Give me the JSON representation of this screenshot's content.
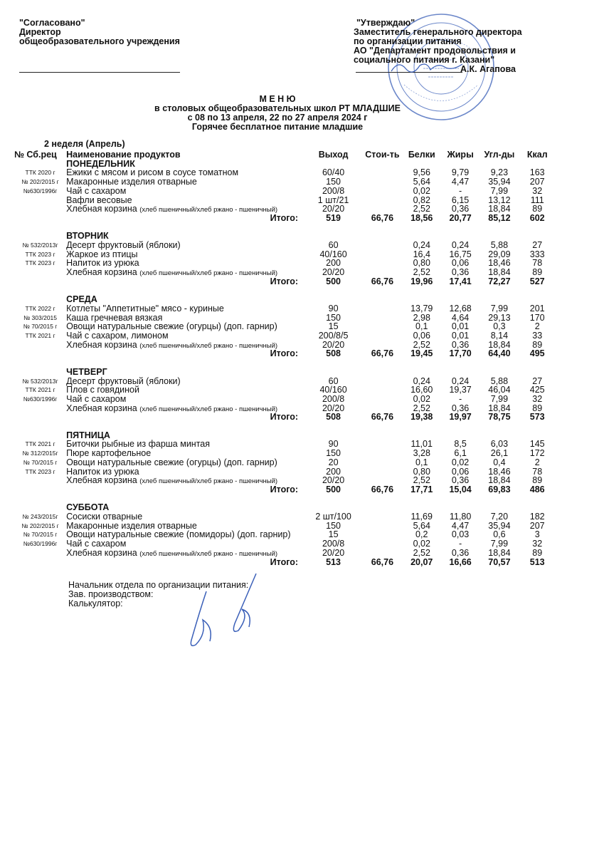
{
  "left_header": {
    "agreed": "\"Согласовано\"",
    "position": "Директор",
    "org": "общеобразовательного учреждения"
  },
  "right_header": {
    "approved": "\"Утверждаю\"",
    "position": "Заместитель генерального директора",
    "dept": "по организации питания",
    "org_line1": "АО  \"Департамент  продовольствия  и",
    "org_line2": "социального питания г. Казани\"",
    "signer": "А.К. Агапова"
  },
  "title": {
    "main": "М Е Н Ю",
    "line1": "в столовых общеобразовательных школ РТ МЛАДШИЕ",
    "line2": "с 08 по 13 апреля, 22 по 27 апреля 2024 г",
    "line3": "Горячее бесплатное питание младшие"
  },
  "week_label": "2 неделя (Апрель)",
  "columns": [
    "№ Сб.рец",
    "Наименование продуктов",
    "Выход",
    "Стои-ть",
    "Белки",
    "Жиры",
    "Угл-ды",
    "Ккал"
  ],
  "total_label": "Итого:",
  "days": [
    {
      "name": "ПОНЕДЕЛЬНИК",
      "items": [
        {
          "code": "ТТК 2020 г",
          "name": "Ежики с мясом и рисом в соусе томатном",
          "out": "60/40",
          "b": "9,56",
          "f": "9,79",
          "c": "9,23",
          "k": "163"
        },
        {
          "code": "№ 202/2015 г",
          "name": "Макаронные изделия отварные",
          "out": "150",
          "b": "5,64",
          "f": "4,47",
          "c": "35,94",
          "k": "207"
        },
        {
          "code": "№630/1996г",
          "name": "Чай с сахаром",
          "out": "200/8",
          "b": "0,02",
          "f": "-",
          "c": "7,99",
          "k": "32"
        },
        {
          "code": "",
          "name": "Вафли весовые",
          "out": "1 шт/21",
          "b": "0,82",
          "f": "6,15",
          "c": "13,12",
          "k": "111"
        },
        {
          "code": "",
          "name": "Хлебная корзина",
          "note": "(хлеб пшеничный/хлеб ржано - пшеничный)",
          "out": "20/20",
          "b": "2,52",
          "f": "0,36",
          "c": "18,84",
          "k": "89"
        }
      ],
      "total": {
        "out": "519",
        "cost": "66,76",
        "b": "18,56",
        "f": "20,77",
        "c": "85,12",
        "k": "602"
      }
    },
    {
      "name": "ВТОРНИК",
      "items": [
        {
          "code": "№ 532/2013г",
          "name": "Десерт фруктовый (яблоки)",
          "out": "60",
          "b": "0,24",
          "f": "0,24",
          "c": "5,88",
          "k": "27"
        },
        {
          "code": "ТТК 2023 г",
          "name": "Жаркое из птицы",
          "out": "40/160",
          "b": "16,4",
          "f": "16,75",
          "c": "29,09",
          "k": "333"
        },
        {
          "code": "ТТК 2023 г",
          "name": "Напиток из урюка",
          "out": "200",
          "b": "0,80",
          "f": "0,06",
          "c": "18,46",
          "k": "78"
        },
        {
          "code": "",
          "name": "Хлебная корзина",
          "note": "(хлеб пшеничный/хлеб ржано - пшеничный)",
          "out": "20/20",
          "b": "2,52",
          "f": "0,36",
          "c": "18,84",
          "k": "89"
        }
      ],
      "total": {
        "out": "500",
        "cost": "66,76",
        "b": "19,96",
        "f": "17,41",
        "c": "72,27",
        "k": "527"
      }
    },
    {
      "name": "СРЕДА",
      "items": [
        {
          "code": "ТТК 2022 г",
          "name": "Котлеты \"Аппетитные\" мясо - куриные",
          "out": "90",
          "b": "13,79",
          "f": "12,68",
          "c": "7,99",
          "k": "201"
        },
        {
          "code": "№ 303/2015",
          "name": "Каша гречневая вязкая",
          "out": "150",
          "b": "2,98",
          "f": "4,64",
          "c": "29,13",
          "k": "170"
        },
        {
          "code": "№ 70/2015 г",
          "name": "Овощи натуральные свежие (огурцы) (доп. гарнир)",
          "out": "15",
          "b": "0,1",
          "f": "0,01",
          "c": "0,3",
          "k": "2"
        },
        {
          "code": "ТТК 2021 г",
          "name": "Чай с сахаром, лимоном",
          "out": "200/8/5",
          "b": "0,06",
          "f": "0,01",
          "c": "8,14",
          "k": "33"
        },
        {
          "code": "",
          "name": "Хлебная корзина",
          "note": "(хлеб пшеничный/хлеб ржано - пшеничный)",
          "out": "20/20",
          "b": "2,52",
          "f": "0,36",
          "c": "18,84",
          "k": "89"
        }
      ],
      "total": {
        "out": "508",
        "cost": "66,76",
        "b": "19,45",
        "f": "17,70",
        "c": "64,40",
        "k": "495"
      }
    },
    {
      "name": "ЧЕТВЕРГ",
      "items": [
        {
          "code": "№ 532/2013г",
          "name": "Десерт фруктовый (яблоки)",
          "out": "60",
          "b": "0,24",
          "f": "0,24",
          "c": "5,88",
          "k": "27"
        },
        {
          "code": "ТТК 2021 г",
          "name": "Плов с говядиной",
          "out": "40/160",
          "b": "16,60",
          "f": "19,37",
          "c": "46,04",
          "k": "425"
        },
        {
          "code": "№630/1996г",
          "name": "Чай с сахаром",
          "out": "200/8",
          "b": "0,02",
          "f": "-",
          "c": "7,99",
          "k": "32"
        },
        {
          "code": "",
          "name": "Хлебная корзина",
          "note": "(хлеб пшеничный/хлеб ржано - пшеничный)",
          "out": "20/20",
          "b": "2,52",
          "f": "0,36",
          "c": "18,84",
          "k": "89"
        }
      ],
      "total": {
        "out": "508",
        "cost": "66,76",
        "b": "19,38",
        "f": "19,97",
        "c": "78,75",
        "k": "573"
      }
    },
    {
      "name": "ПЯТНИЦА",
      "items": [
        {
          "code": "ТТК 2021 г",
          "name": "Биточки рыбные из фарша минтая",
          "out": "90",
          "b": "11,01",
          "f": "8,5",
          "c": "6,03",
          "k": "145"
        },
        {
          "code": "№ 312/2015г",
          "name": "Пюре картофельное",
          "out": "150",
          "b": "3,28",
          "f": "6,1",
          "c": "26,1",
          "k": "172"
        },
        {
          "code": "№ 70/2015 г",
          "name": "Овощи натуральные свежие (огурцы) (доп. гарнир)",
          "out": "20",
          "b": "0,1",
          "f": "0,02",
          "c": "0,4",
          "k": "2"
        },
        {
          "code": "ТТК 2023 г",
          "name": "Напиток из урюка",
          "out": "200",
          "b": "0,80",
          "f": "0,06",
          "c": "18,46",
          "k": "78"
        },
        {
          "code": "",
          "name": "Хлебная корзина",
          "note": "(хлеб пшеничный/хлеб ржано - пшеничный)",
          "out": "20/20",
          "b": "2,52",
          "f": "0,36",
          "c": "18,84",
          "k": "89"
        }
      ],
      "total": {
        "out": "500",
        "cost": "66,76",
        "b": "17,71",
        "f": "15,04",
        "c": "69,83",
        "k": "486"
      }
    },
    {
      "name": "СУББОТА",
      "items": [
        {
          "code": "№ 243/2015г",
          "name": "Сосиски отварные",
          "out": "2 шт/100",
          "b": "11,69",
          "f": "11,80",
          "c": "7,20",
          "k": "182"
        },
        {
          "code": "№ 202/2015 г",
          "name": "Макаронные изделия отварные",
          "out": "150",
          "b": "5,64",
          "f": "4,47",
          "c": "35,94",
          "k": "207"
        },
        {
          "code": "№ 70/2015 г",
          "name": "Овощи натуральные свежие (помидоры) (доп. гарнир)",
          "out": "15",
          "b": "0,2",
          "f": "0,03",
          "c": "0,6",
          "k": "3"
        },
        {
          "code": "№630/1996г",
          "name": "Чай с сахаром",
          "out": "200/8",
          "b": "0,02",
          "f": "-",
          "c": "7,99",
          "k": "32"
        },
        {
          "code": "",
          "name": "Хлебная корзина",
          "note": "(хлеб пшеничный/хлеб ржано - пшеничный)",
          "out": "20/20",
          "b": "2,52",
          "f": "0,36",
          "c": "18,84",
          "k": "89"
        }
      ],
      "total": {
        "out": "513",
        "cost": "66,76",
        "b": "20,07",
        "f": "16,66",
        "c": "70,57",
        "k": "513"
      }
    }
  ],
  "footer": {
    "head": "Начальник отдела по организации питания:",
    "production": "Зав. производством:",
    "calculator": "Калькулятор:"
  },
  "stamp_color": "#3a5fb8"
}
